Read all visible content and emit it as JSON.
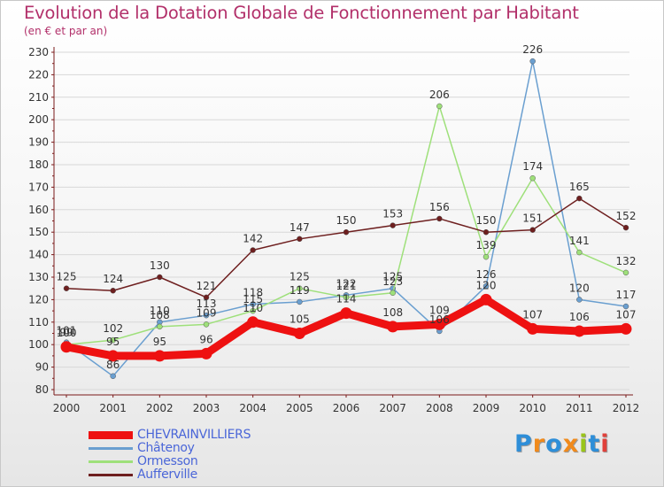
{
  "title": "Evolution de la Dotation Globale de Fonctionnement par Habitant",
  "subtitle": "(en € et par an)",
  "logo": {
    "text": "Proxiti",
    "letter_colors": [
      "#2e8ed8",
      "#f08a1c",
      "#2e8ed8",
      "#f08a1c",
      "#9ac51b",
      "#2e8ed8",
      "#e0403a"
    ]
  },
  "colors": {
    "title": "#b2306a",
    "axis": "#333333",
    "grid": "#d8d8d8",
    "legend_text": "#4a66d8"
  },
  "chart_data": {
    "type": "line",
    "title": "Evolution de la Dotation Globale de Fonctionnement par Habitant",
    "subtitle": "(en € et par an)",
    "xlabel": "",
    "ylabel": "",
    "ylim": [
      80,
      230
    ],
    "ytick_step": 10,
    "categories": [
      "2000",
      "2001",
      "2002",
      "2003",
      "2004",
      "2005",
      "2006",
      "2007",
      "2008",
      "2009",
      "2010",
      "2011",
      "2012"
    ],
    "legend_position": "bottom-left",
    "series": [
      {
        "name": "CHEVRAINVILLIERS",
        "color": "#ee1111",
        "width": 9,
        "values": [
          99,
          95,
          95,
          96,
          110,
          105,
          114,
          108,
          109,
          120,
          107,
          106,
          107
        ]
      },
      {
        "name": "Châtenoy",
        "color": "#6a9fd0",
        "width": 1.5,
        "values": [
          101,
          86,
          110,
          113,
          118,
          119,
          122,
          125,
          106,
          126,
          226,
          120,
          117
        ]
      },
      {
        "name": "Ormesson",
        "color": "#9ee07a",
        "width": 1.5,
        "values": [
          100,
          102,
          108,
          109,
          115,
          125,
          121,
          123,
          206,
          139,
          174,
          141,
          132
        ]
      },
      {
        "name": "Aufferville",
        "color": "#6e1f1f",
        "width": 1.5,
        "values": [
          125,
          124,
          130,
          121,
          142,
          147,
          150,
          153,
          156,
          150,
          151,
          165,
          152
        ]
      }
    ]
  }
}
